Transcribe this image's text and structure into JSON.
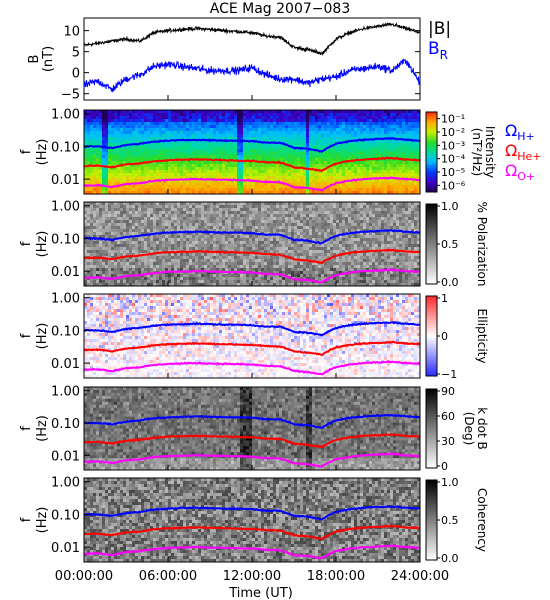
{
  "chart_data": [
    {
      "type": "line",
      "title": "ACE Mag 2007−083",
      "ylabel": "B",
      "yunit": "(nT)",
      "yticks": [
        "10",
        "5",
        "0",
        "−5"
      ],
      "ylim": [
        -6.5,
        13
      ],
      "series": [
        {
          "name": "|B|",
          "color": "#000000",
          "x_hours": [
            0,
            1,
            2,
            3,
            4,
            5,
            6,
            7,
            8,
            9,
            10,
            11,
            12,
            13,
            14,
            15,
            16,
            17,
            18,
            19,
            20,
            21,
            22,
            23,
            24
          ],
          "values": [
            6.5,
            7,
            7.5,
            8,
            7.5,
            9.5,
            10,
            10.3,
            10.5,
            10.3,
            10,
            9.8,
            9.5,
            8.7,
            8.5,
            6,
            5.5,
            4.5,
            8,
            9.5,
            10.5,
            11,
            11.5,
            10.5,
            9.5
          ]
        },
        {
          "name": "B_R",
          "color": "#0000ff",
          "x_hours": [
            0,
            1,
            2,
            3,
            4,
            5,
            6,
            7,
            8,
            9,
            10,
            11,
            12,
            13,
            14,
            15,
            16,
            17,
            18,
            19,
            20,
            21,
            22,
            23,
            24
          ],
          "values": [
            -3,
            -2,
            -4,
            -1.5,
            -0.5,
            1.5,
            2,
            1.5,
            1,
            0.5,
            0.5,
            0.5,
            1.2,
            -0.5,
            -1.5,
            -1.5,
            -2.5,
            -1.5,
            -1,
            0.5,
            1,
            1.5,
            0.5,
            3,
            -2.5
          ]
        }
      ]
    },
    {
      "type": "heatmap",
      "ylabel": "f",
      "yunit": "(Hz)",
      "ytick_labels": [
        "1.00",
        "0.10",
        "0.01"
      ],
      "colorbar_label": "Intensity",
      "colorbar_unit": "(nT²/Hz)",
      "colorbar_ticks": [
        "10⁻¹",
        "10⁻²",
        "10⁻³",
        "10⁻⁴",
        "10⁻⁵",
        "10⁻⁶"
      ],
      "colorbar_range_log10": [
        -6.5,
        -0.5
      ],
      "colormap": "rainbow"
    },
    {
      "type": "heatmap",
      "ylabel": "f",
      "yunit": "(Hz)",
      "ytick_labels": [
        "1.00",
        "0.10",
        "0.01"
      ],
      "colorbar_label": "% Polarization",
      "colorbar_ticks": [
        "1.0",
        "0.5",
        "0.0"
      ],
      "colorbar_range": [
        0,
        1
      ],
      "colormap": "gray"
    },
    {
      "type": "heatmap",
      "ylabel": "f",
      "yunit": "(Hz)",
      "ytick_labels": [
        "1.00",
        "0.10",
        "0.01"
      ],
      "colorbar_label": "Ellipticity",
      "colorbar_ticks": [
        "1",
        "0",
        "−1"
      ],
      "colorbar_range": [
        -1,
        1
      ],
      "colormap": "blue-white-red"
    },
    {
      "type": "heatmap",
      "ylabel": "f",
      "yunit": "(Hz)",
      "ytick_labels": [
        "1.00",
        "0.10",
        "0.01"
      ],
      "colorbar_label": "k dot B",
      "colorbar_unit": "(Deg)",
      "colorbar_ticks": [
        "90",
        "60",
        "30",
        "0"
      ],
      "colorbar_range": [
        0,
        90
      ],
      "colormap": "gray"
    },
    {
      "type": "heatmap",
      "ylabel": "f",
      "yunit": "(Hz)",
      "ytick_labels": [
        "1.00",
        "0.10",
        "0.01"
      ],
      "colorbar_label": "Coherency",
      "colorbar_ticks": [
        "1.0",
        "0.5",
        "0.0"
      ],
      "colorbar_range": [
        0,
        1
      ],
      "colormap": "gray"
    }
  ],
  "gyrofrequency_lines": [
    {
      "label": "Ω",
      "sub": "H+",
      "color": "#0000ff",
      "x_hours": [
        0,
        1,
        2,
        3,
        4,
        5,
        6,
        7,
        8,
        9,
        10,
        11,
        12,
        13,
        14,
        15,
        16,
        17,
        18,
        19,
        20,
        21,
        22,
        23,
        24
      ],
      "f_hz": [
        0.1,
        0.1,
        0.09,
        0.11,
        0.12,
        0.14,
        0.15,
        0.155,
        0.16,
        0.155,
        0.15,
        0.15,
        0.145,
        0.13,
        0.13,
        0.09,
        0.085,
        0.07,
        0.12,
        0.145,
        0.16,
        0.17,
        0.175,
        0.16,
        0.15
      ]
    },
    {
      "label": "Ω",
      "sub": "He+",
      "color": "#ff0000",
      "x_hours": [
        0,
        1,
        2,
        3,
        4,
        5,
        6,
        7,
        8,
        9,
        10,
        11,
        12,
        13,
        14,
        15,
        16,
        17,
        18,
        19,
        20,
        21,
        22,
        23,
        24
      ],
      "f_hz": [
        0.025,
        0.026,
        0.023,
        0.028,
        0.03,
        0.035,
        0.038,
        0.039,
        0.04,
        0.039,
        0.038,
        0.037,
        0.036,
        0.033,
        0.032,
        0.023,
        0.021,
        0.018,
        0.03,
        0.036,
        0.04,
        0.042,
        0.044,
        0.04,
        0.038
      ]
    },
    {
      "label": "Ω",
      "sub": "O+",
      "color": "#ff00ff",
      "x_hours": [
        0,
        1,
        2,
        3,
        4,
        5,
        6,
        7,
        8,
        9,
        10,
        11,
        12,
        13,
        14,
        15,
        16,
        17,
        18,
        19,
        20,
        21,
        22,
        23,
        24
      ],
      "f_hz": [
        0.0062,
        0.0065,
        0.0057,
        0.007,
        0.0075,
        0.0087,
        0.0095,
        0.0097,
        0.01,
        0.0097,
        0.0095,
        0.0093,
        0.009,
        0.0082,
        0.008,
        0.0057,
        0.0053,
        0.0045,
        0.0075,
        0.009,
        0.01,
        0.0105,
        0.011,
        0.01,
        0.0095
      ]
    }
  ],
  "xaxis": {
    "label": "Time (UT)",
    "ticks_hours": [
      0,
      6,
      12,
      18,
      24
    ],
    "tick_labels": [
      "00:00:00",
      "06:00:00",
      "12:00:00",
      "18:00:00",
      "24:00:00"
    ],
    "range_hours": [
      0,
      24
    ]
  },
  "legend_top": {
    "b_mag": "|B|",
    "b_r_main": "B",
    "b_r_sub": "R"
  }
}
